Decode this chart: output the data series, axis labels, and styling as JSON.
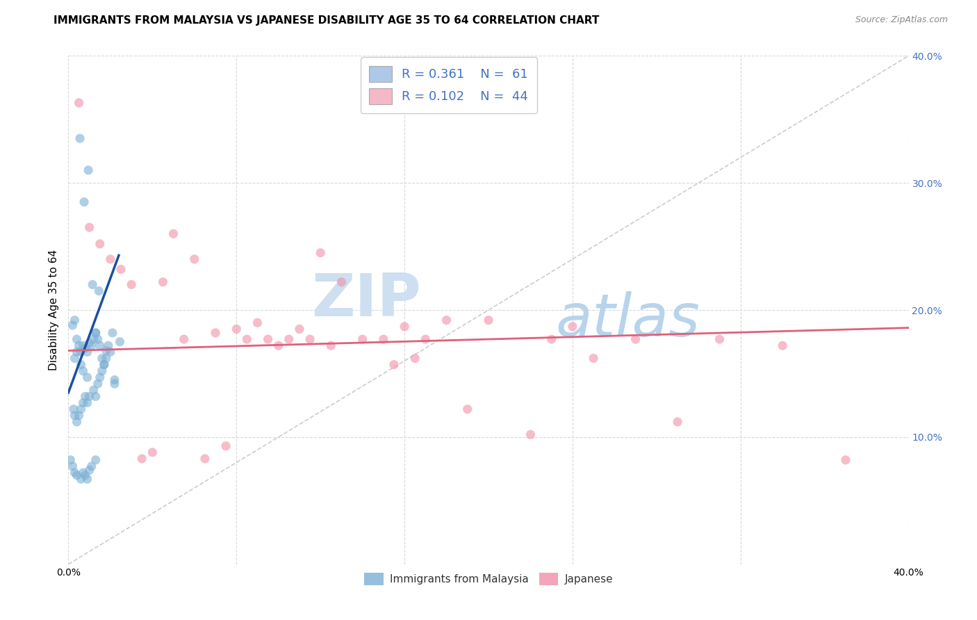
{
  "title": "IMMIGRANTS FROM MALAYSIA VS JAPANESE DISABILITY AGE 35 TO 64 CORRELATION CHART",
  "source": "Source: ZipAtlas.com",
  "ylabel": "Disability Age 35 to 64",
  "xlim": [
    0,
    0.4
  ],
  "ylim": [
    0,
    0.4
  ],
  "xtick_vals": [
    0.0,
    0.08,
    0.16,
    0.24,
    0.32,
    0.4
  ],
  "xtick_labels": [
    "0.0%",
    "",
    "",
    "",
    "",
    "40.0%"
  ],
  "ytick_vals": [
    0.0,
    0.1,
    0.2,
    0.3,
    0.4
  ],
  "right_ytick_labels": [
    "",
    "10.0%",
    "20.0%",
    "30.0%",
    "40.0%"
  ],
  "legend_series": [
    {
      "label": "Immigrants from Malaysia",
      "R": "0.361",
      "N": "61",
      "color": "#adc8e8"
    },
    {
      "label": "Japanese",
      "R": "0.102",
      "N": "44",
      "color": "#f4b8c8"
    }
  ],
  "blue_scatter_x": [
    0.0055,
    0.0095,
    0.0075,
    0.0115,
    0.0145,
    0.003,
    0.004,
    0.006,
    0.007,
    0.009,
    0.011,
    0.013,
    0.014,
    0.016,
    0.017,
    0.019,
    0.021,
    0.0245,
    0.0025,
    0.003,
    0.004,
    0.005,
    0.006,
    0.007,
    0.008,
    0.009,
    0.01,
    0.012,
    0.013,
    0.014,
    0.015,
    0.016,
    0.017,
    0.018,
    0.02,
    0.022,
    0.001,
    0.002,
    0.003,
    0.004,
    0.006,
    0.007,
    0.008,
    0.009,
    0.01,
    0.011,
    0.013,
    0.002,
    0.003,
    0.004,
    0.005,
    0.006,
    0.007,
    0.008,
    0.009,
    0.01,
    0.012,
    0.013,
    0.015,
    0.018,
    0.022
  ],
  "blue_scatter_y": [
    0.335,
    0.31,
    0.285,
    0.22,
    0.215,
    0.162,
    0.167,
    0.157,
    0.152,
    0.147,
    0.172,
    0.182,
    0.177,
    0.162,
    0.157,
    0.172,
    0.182,
    0.175,
    0.122,
    0.117,
    0.112,
    0.117,
    0.122,
    0.127,
    0.132,
    0.127,
    0.132,
    0.137,
    0.132,
    0.142,
    0.147,
    0.152,
    0.157,
    0.162,
    0.167,
    0.142,
    0.082,
    0.077,
    0.072,
    0.07,
    0.067,
    0.072,
    0.07,
    0.067,
    0.074,
    0.077,
    0.082,
    0.188,
    0.192,
    0.177,
    0.172,
    0.167,
    0.172,
    0.17,
    0.167,
    0.174,
    0.177,
    0.182,
    0.172,
    0.168,
    0.145
  ],
  "pink_scatter_x": [
    0.005,
    0.01,
    0.02,
    0.03,
    0.035,
    0.04,
    0.05,
    0.06,
    0.065,
    0.075,
    0.085,
    0.095,
    0.1,
    0.105,
    0.11,
    0.115,
    0.12,
    0.125,
    0.13,
    0.14,
    0.15,
    0.155,
    0.16,
    0.165,
    0.17,
    0.18,
    0.19,
    0.2,
    0.22,
    0.23,
    0.24,
    0.25,
    0.27,
    0.29,
    0.31,
    0.34,
    0.37,
    0.015,
    0.025,
    0.045,
    0.055,
    0.07,
    0.08,
    0.09
  ],
  "pink_scatter_y": [
    0.363,
    0.265,
    0.24,
    0.22,
    0.083,
    0.088,
    0.26,
    0.24,
    0.083,
    0.093,
    0.177,
    0.177,
    0.172,
    0.177,
    0.185,
    0.177,
    0.245,
    0.172,
    0.222,
    0.177,
    0.177,
    0.157,
    0.187,
    0.162,
    0.177,
    0.192,
    0.122,
    0.192,
    0.102,
    0.177,
    0.187,
    0.162,
    0.177,
    0.112,
    0.177,
    0.172,
    0.082,
    0.252,
    0.232,
    0.222,
    0.177,
    0.182,
    0.185,
    0.19
  ],
  "blue_line_x": [
    0.0,
    0.024
  ],
  "blue_line_y_intercept": 0.135,
  "blue_line_slope": 4.5,
  "pink_line_x": [
    0.0,
    0.4
  ],
  "pink_line_y_intercept": 0.168,
  "pink_line_slope": 0.045,
  "ref_line_x": [
    0.0,
    0.4
  ],
  "ref_line_y": [
    0.0,
    0.4
  ],
  "scatter_color_blue": "#7bafd4",
  "scatter_color_pink": "#f090a8",
  "scatter_alpha": 0.6,
  "scatter_size": 90,
  "trend_blue_color": "#1a4fa0",
  "trend_pink_color": "#e0607a",
  "ref_line_color": "#c0c0c0",
  "grid_color": "#d8d8d8",
  "background_color": "#ffffff",
  "watermark_zip_color": "#c8dff0",
  "watermark_atlas_color": "#a8c8e8",
  "title_fontsize": 11,
  "axis_label_fontsize": 11,
  "tick_fontsize": 10,
  "legend_fontsize": 13,
  "right_tick_color": "#4472c4",
  "legend_text_color": "#333333",
  "legend_rn_color": "#4472c4"
}
